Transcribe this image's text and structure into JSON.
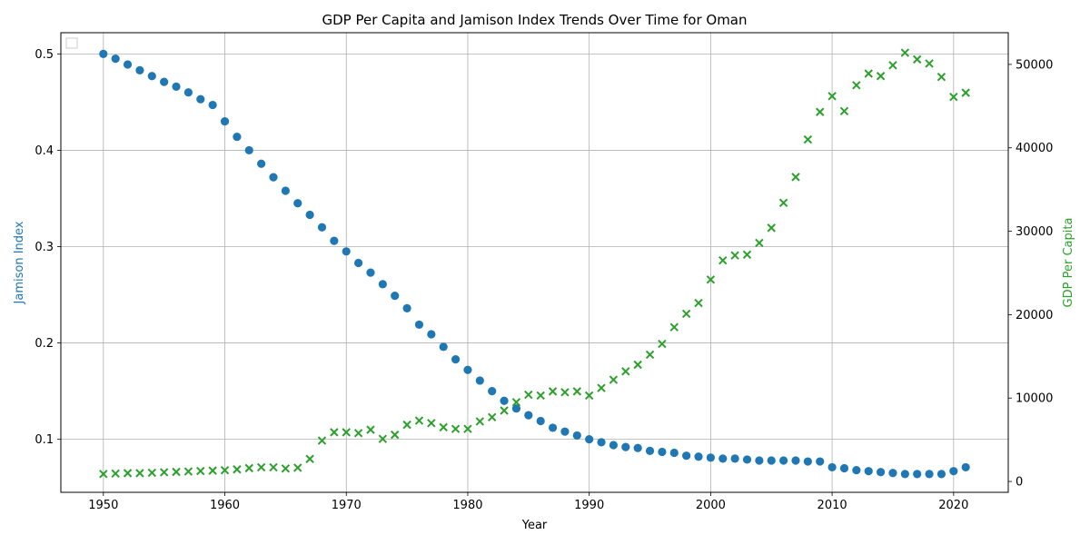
{
  "chart_data": {
    "type": "scatter",
    "title": "GDP Per Capita and Jamison Index Trends Over Time for Oman",
    "xlabel": "Year",
    "ylabel_left": "Jamison Index",
    "ylabel_right": "GDP Per Capita",
    "xlim": [
      1946.5,
      2024.5
    ],
    "ylim_left": [
      0.045,
      0.522
    ],
    "ylim_right": [
      -1300,
      53800
    ],
    "x_ticks": [
      1950,
      1960,
      1970,
      1980,
      1990,
      2000,
      2010,
      2020
    ],
    "y_ticks_left": [
      0.1,
      0.2,
      0.3,
      0.4,
      0.5
    ],
    "y_ticks_right": [
      0,
      10000,
      20000,
      30000,
      40000,
      50000
    ],
    "grid": true,
    "legend": "upper-left (empty)",
    "colors": {
      "jamison": "#1f77b4",
      "gdp": "#2ca02c"
    },
    "x": [
      1950,
      1951,
      1952,
      1953,
      1954,
      1955,
      1956,
      1957,
      1958,
      1959,
      1960,
      1961,
      1962,
      1963,
      1964,
      1965,
      1966,
      1967,
      1968,
      1969,
      1970,
      1971,
      1972,
      1973,
      1974,
      1975,
      1976,
      1977,
      1978,
      1979,
      1980,
      1981,
      1982,
      1983,
      1984,
      1985,
      1986,
      1987,
      1988,
      1989,
      1990,
      1991,
      1992,
      1993,
      1994,
      1995,
      1996,
      1997,
      1998,
      1999,
      2000,
      2001,
      2002,
      2003,
      2004,
      2005,
      2006,
      2007,
      2008,
      2009,
      2010,
      2011,
      2012,
      2013,
      2014,
      2015,
      2016,
      2017,
      2018,
      2019,
      2020,
      2021
    ],
    "series": [
      {
        "name": "Jamison Index",
        "axis": "left",
        "marker": "circle",
        "values": [
          0.5,
          0.495,
          0.489,
          0.483,
          0.477,
          0.471,
          0.466,
          0.46,
          0.453,
          0.447,
          0.43,
          0.414,
          0.4,
          0.386,
          0.372,
          0.358,
          0.345,
          0.333,
          0.32,
          0.306,
          0.295,
          0.283,
          0.273,
          0.261,
          0.249,
          0.236,
          0.219,
          0.209,
          0.196,
          0.183,
          0.172,
          0.161,
          0.15,
          0.14,
          0.132,
          0.125,
          0.119,
          0.112,
          0.108,
          0.104,
          0.1,
          0.097,
          0.094,
          0.092,
          0.091,
          0.088,
          0.087,
          0.086,
          0.083,
          0.082,
          0.081,
          0.08,
          0.08,
          0.079,
          0.078,
          0.078,
          0.078,
          0.078,
          0.077,
          0.077,
          0.071,
          0.07,
          0.068,
          0.067,
          0.066,
          0.065,
          0.064,
          0.064,
          0.064,
          0.064,
          0.067,
          0.071
        ]
      },
      {
        "name": "GDP Per Capita",
        "axis": "right",
        "marker": "x",
        "values": [
          900,
          950,
          1000,
          1000,
          1050,
          1100,
          1150,
          1200,
          1250,
          1300,
          1350,
          1450,
          1600,
          1700,
          1700,
          1550,
          1650,
          2700,
          4900,
          5900,
          5900,
          5800,
          6200,
          5100,
          5600,
          6800,
          7300,
          7000,
          6500,
          6300,
          6300,
          7200,
          7700,
          8500,
          9500,
          10400,
          10300,
          10800,
          10700,
          10800,
          10300,
          11200,
          12200,
          13200,
          14000,
          15200,
          16500,
          18500,
          20100,
          21400,
          24200,
          26500,
          27100,
          27200,
          28600,
          30400,
          33400,
          36500,
          41000,
          44300,
          46200,
          44400,
          47500,
          48900,
          48600,
          49900,
          51400,
          50600,
          50100,
          48500,
          46100,
          46600
        ]
      }
    ]
  }
}
